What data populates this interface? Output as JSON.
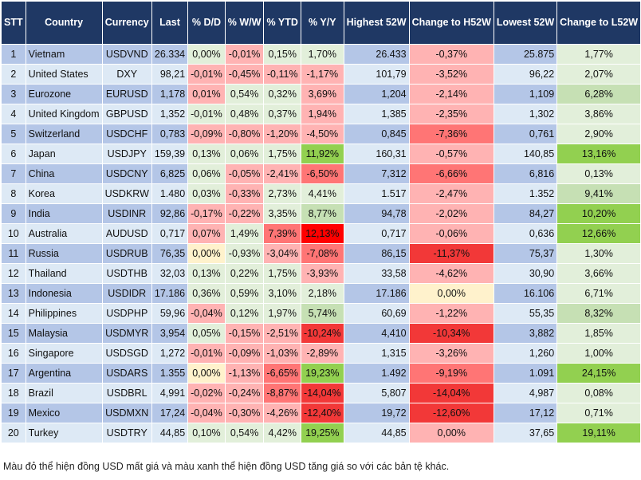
{
  "headers": [
    "STT",
    "Country",
    "Currency",
    "Last",
    "% D/D",
    "% W/W",
    "% YTD",
    "% Y/Y",
    "Highest 52W",
    "Change to H52W",
    "Lowest 52W",
    "Change to L52W"
  ],
  "palette": {
    "odd": "#b4c6e7",
    "even": "#dde9f5",
    "g": "#e2efda",
    "G": "#c6e0b4",
    "GG": "#92d050",
    "r": "#ffb3b3",
    "R": "#ff7575",
    "RR": "#f23838",
    "X": "#ff0000",
    "y": "#fff2cc"
  },
  "rows": [
    {
      "stt": "1",
      "country": "Vietnam",
      "currency": "USDVND",
      "last": "26.334",
      "dd": "0,00%",
      "ww": "-0,01%",
      "ytd": "0,15%",
      "yy": "1,70%",
      "high": "26.433",
      "chh": "-0,37%",
      "low": "25.875",
      "chl": "1,77%",
      "colors": [
        "g",
        "r",
        "g",
        "g",
        "r",
        "g"
      ]
    },
    {
      "stt": "2",
      "country": "United States",
      "currency": "DXY",
      "last": "98,21",
      "dd": "-0,01%",
      "ww": "-0,45%",
      "ytd": "-0,11%",
      "yy": "-1,17%",
      "high": "101,79",
      "chh": "-3,52%",
      "low": "96,22",
      "chl": "2,07%",
      "colors": [
        "r",
        "r",
        "r",
        "r",
        "r",
        "g"
      ]
    },
    {
      "stt": "3",
      "country": "Eurozone",
      "currency": "EURUSD",
      "last": "1,178",
      "dd": "0,01%",
      "ww": "0,54%",
      "ytd": "0,32%",
      "yy": "3,69%",
      "high": "1,204",
      "chh": "-2,14%",
      "low": "1,109",
      "chl": "6,28%",
      "colors": [
        "r",
        "g",
        "g",
        "r",
        "r",
        "G"
      ]
    },
    {
      "stt": "4",
      "country": "United Kingdom",
      "currency": "GBPUSD",
      "last": "1,352",
      "dd": "-0,01%",
      "ww": "0,48%",
      "ytd": "0,37%",
      "yy": "1,94%",
      "high": "1,385",
      "chh": "-2,35%",
      "low": "1,302",
      "chl": "3,86%",
      "colors": [
        "g",
        "g",
        "g",
        "r",
        "r",
        "g"
      ]
    },
    {
      "stt": "5",
      "country": "Switzerland",
      "currency": "USDCHF",
      "last": "0,783",
      "dd": "-0,09%",
      "ww": "-0,80%",
      "ytd": "-1,20%",
      "yy": "-4,50%",
      "high": "0,845",
      "chh": "-7,36%",
      "low": "0,761",
      "chl": "2,90%",
      "colors": [
        "r",
        "r",
        "r",
        "r",
        "R",
        "g"
      ]
    },
    {
      "stt": "6",
      "country": "Japan",
      "currency": "USDJPY",
      "last": "159,39",
      "dd": "0,13%",
      "ww": "0,06%",
      "ytd": "1,75%",
      "yy": "11,92%",
      "high": "160,31",
      "chh": "-0,57%",
      "low": "140,85",
      "chl": "13,16%",
      "colors": [
        "g",
        "g",
        "g",
        "GG",
        "r",
        "GG"
      ]
    },
    {
      "stt": "7",
      "country": "China",
      "currency": "USDCNY",
      "last": "6,825",
      "dd": "0,06%",
      "ww": "-0,05%",
      "ytd": "-2,41%",
      "yy": "-6,50%",
      "high": "7,312",
      "chh": "-6,66%",
      "low": "6,816",
      "chl": "0,13%",
      "colors": [
        "g",
        "r",
        "r",
        "R",
        "R",
        "g"
      ]
    },
    {
      "stt": "8",
      "country": "Korea",
      "currency": "USDKRW",
      "last": "1.480",
      "dd": "0,03%",
      "ww": "-0,33%",
      "ytd": "2,73%",
      "yy": "4,41%",
      "high": "1.517",
      "chh": "-2,47%",
      "low": "1.352",
      "chl": "9,41%",
      "colors": [
        "g",
        "r",
        "g",
        "g",
        "r",
        "G"
      ]
    },
    {
      "stt": "9",
      "country": "India",
      "currency": "USDINR",
      "last": "92,86",
      "dd": "-0,17%",
      "ww": "-0,22%",
      "ytd": "3,35%",
      "yy": "8,77%",
      "high": "94,78",
      "chh": "-2,02%",
      "low": "84,27",
      "chl": "10,20%",
      "colors": [
        "r",
        "r",
        "g",
        "G",
        "r",
        "GG"
      ]
    },
    {
      "stt": "10",
      "country": "Australia",
      "currency": "AUDUSD",
      "last": "0,717",
      "dd": "0,07%",
      "ww": "1,49%",
      "ytd": "7,39%",
      "yy": "12,13%",
      "high": "0,717",
      "chh": "-0,06%",
      "low": "0,636",
      "chl": "12,66%",
      "colors": [
        "r",
        "g",
        "R",
        "X",
        "r",
        "GG"
      ]
    },
    {
      "stt": "11",
      "country": "Russia",
      "currency": "USDRUB",
      "last": "76,35",
      "dd": "0,00%",
      "ww": "-0,93%",
      "ytd": "-3,04%",
      "yy": "-7,08%",
      "high": "86,15",
      "chh": "-11,37%",
      "low": "75,37",
      "chl": "1,30%",
      "colors": [
        "y",
        "g",
        "r",
        "R",
        "RR",
        "g"
      ]
    },
    {
      "stt": "12",
      "country": "Thailand",
      "currency": "USDTHB",
      "last": "32,03",
      "dd": "0,13%",
      "ww": "0,22%",
      "ytd": "1,75%",
      "yy": "-3,93%",
      "high": "33,58",
      "chh": "-4,62%",
      "low": "30,90",
      "chl": "3,66%",
      "colors": [
        "g",
        "g",
        "g",
        "r",
        "r",
        "g"
      ]
    },
    {
      "stt": "13",
      "country": "Indonesia",
      "currency": "USDIDR",
      "last": "17.186",
      "dd": "0,36%",
      "ww": "0,59%",
      "ytd": "3,10%",
      "yy": "2,18%",
      "high": "17.186",
      "chh": "0,00%",
      "low": "16.106",
      "chl": "6,71%",
      "colors": [
        "g",
        "g",
        "g",
        "g",
        "y",
        "g"
      ]
    },
    {
      "stt": "14",
      "country": "Philippines",
      "currency": "USDPHP",
      "last": "59,96",
      "dd": "-0,04%",
      "ww": "0,12%",
      "ytd": "1,97%",
      "yy": "5,74%",
      "high": "60,69",
      "chh": "-1,22%",
      "low": "55,35",
      "chl": "8,32%",
      "colors": [
        "r",
        "g",
        "g",
        "G",
        "r",
        "G"
      ]
    },
    {
      "stt": "15",
      "country": "Malaysia",
      "currency": "USDMYR",
      "last": "3,954",
      "dd": "0,05%",
      "ww": "-0,15%",
      "ytd": "-2,51%",
      "yy": "-10,24%",
      "high": "4,410",
      "chh": "-10,34%",
      "low": "3,882",
      "chl": "1,85%",
      "colors": [
        "g",
        "r",
        "r",
        "RR",
        "RR",
        "g"
      ]
    },
    {
      "stt": "16",
      "country": "Singapore",
      "currency": "USDSGD",
      "last": "1,272",
      "dd": "-0,01%",
      "ww": "-0,09%",
      "ytd": "-1,03%",
      "yy": "-2,89%",
      "high": "1,315",
      "chh": "-3,26%",
      "low": "1,260",
      "chl": "1,00%",
      "colors": [
        "r",
        "r",
        "r",
        "r",
        "r",
        "g"
      ]
    },
    {
      "stt": "17",
      "country": "Argentina",
      "currency": "USDARS",
      "last": "1.355",
      "dd": "0,00%",
      "ww": "-1,13%",
      "ytd": "-6,65%",
      "yy": "19,23%",
      "high": "1.492",
      "chh": "-9,19%",
      "low": "1.091",
      "chl": "24,15%",
      "colors": [
        "y",
        "r",
        "R",
        "GG",
        "R",
        "GG"
      ]
    },
    {
      "stt": "18",
      "country": "Brazil",
      "currency": "USDBRL",
      "last": "4,991",
      "dd": "-0,02%",
      "ww": "-0,24%",
      "ytd": "-8,87%",
      "yy": "-14,04%",
      "high": "5,807",
      "chh": "-14,04%",
      "low": "4,987",
      "chl": "0,08%",
      "colors": [
        "r",
        "r",
        "R",
        "RR",
        "RR",
        "g"
      ]
    },
    {
      "stt": "19",
      "country": "Mexico",
      "currency": "USDMXN",
      "last": "17,24",
      "dd": "-0,04%",
      "ww": "-0,30%",
      "ytd": "-4,26%",
      "yy": "-12,40%",
      "high": "19,72",
      "chh": "-12,60%",
      "low": "17,12",
      "chl": "0,71%",
      "colors": [
        "r",
        "r",
        "r",
        "RR",
        "RR",
        "g"
      ]
    },
    {
      "stt": "20",
      "country": "Turkey",
      "currency": "USDTRY",
      "last": "44,85",
      "dd": "0,10%",
      "ww": "0,54%",
      "ytd": "4,42%",
      "yy": "19,25%",
      "high": "44,85",
      "chh": "0,00%",
      "low": "37,65",
      "chl": "19,11%",
      "colors": [
        "g",
        "g",
        "g",
        "GG",
        "r",
        "GG"
      ]
    }
  ],
  "caption": "Màu đỏ thể hiện đồng USD mất giá và màu xanh thể hiện đồng USD tăng giá so với các bản tệ khác."
}
